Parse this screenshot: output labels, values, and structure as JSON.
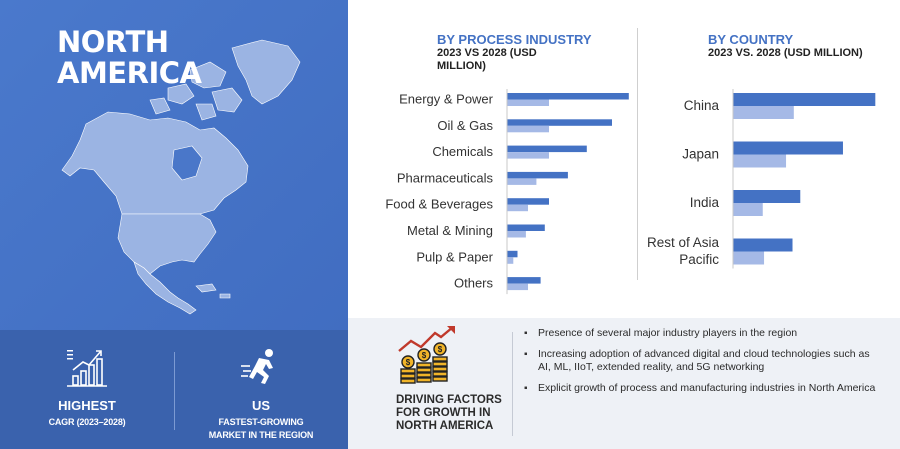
{
  "region": {
    "line1": "NORTH",
    "line2": "AMERICA"
  },
  "stats": [
    {
      "icon": "growth-chart-icon",
      "big": "HIGHEST",
      "small1": "CAGR (2023–2028)",
      "small2": ""
    },
    {
      "icon": "running-person-icon",
      "big": "US",
      "small1": "FASTEST-GROWING",
      "small2": "MARKET IN THE REGION"
    }
  ],
  "chart_data": [
    {
      "type": "bar",
      "orientation": "horizontal",
      "title": "BY  PROCESS INDUSTRY",
      "subtitle_lines": [
        "2023 VS 2028 (USD",
        "MILLION)"
      ],
      "categories": [
        "Energy & Power",
        "Oil & Gas",
        "Chemicals",
        "Pharmaceuticals",
        "Food & Beverages",
        "Metal & Mining",
        "Pulp & Paper",
        "Others"
      ],
      "series": [
        {
          "values": [
            58,
            50,
            38,
            29,
            20,
            18,
            5,
            16
          ]
        },
        {
          "values": [
            20,
            20,
            20,
            14,
            10,
            9,
            3,
            10
          ]
        }
      ],
      "colors": [
        "#4472c4",
        "#a5b9e6"
      ],
      "xlim": [
        0,
        100
      ]
    },
    {
      "type": "bar",
      "orientation": "horizontal",
      "title": "BY COUNTRY",
      "subtitle_lines": [
        "2023 VS. 2028 (USD MILLION)"
      ],
      "categories": [
        "China",
        "Japan",
        "India",
        "Rest of Asia Pacific"
      ],
      "category_lines": [
        [
          "China"
        ],
        [
          "Japan"
        ],
        [
          "India"
        ],
        [
          "Rest of Asia",
          "Pacific"
        ]
      ],
      "series": [
        {
          "values": [
            110,
            85,
            52,
            46
          ]
        },
        {
          "values": [
            47,
            41,
            23,
            24
          ]
        }
      ],
      "colors": [
        "#4472c4",
        "#a5b9e6"
      ],
      "xlim": [
        0,
        160
      ]
    }
  ],
  "drivers": {
    "title_lines": [
      "DRIVING FACTORS",
      "FOR GROWTH IN",
      "NORTH AMERICA"
    ],
    "items": [
      "Presence of several major industry players in the region",
      "Increasing adoption of advanced digital and cloud technologies such as AI, ML, IIoT, extended reality, and 5G networking",
      "Explicit growth of process and manufacturing industries in North America"
    ]
  }
}
